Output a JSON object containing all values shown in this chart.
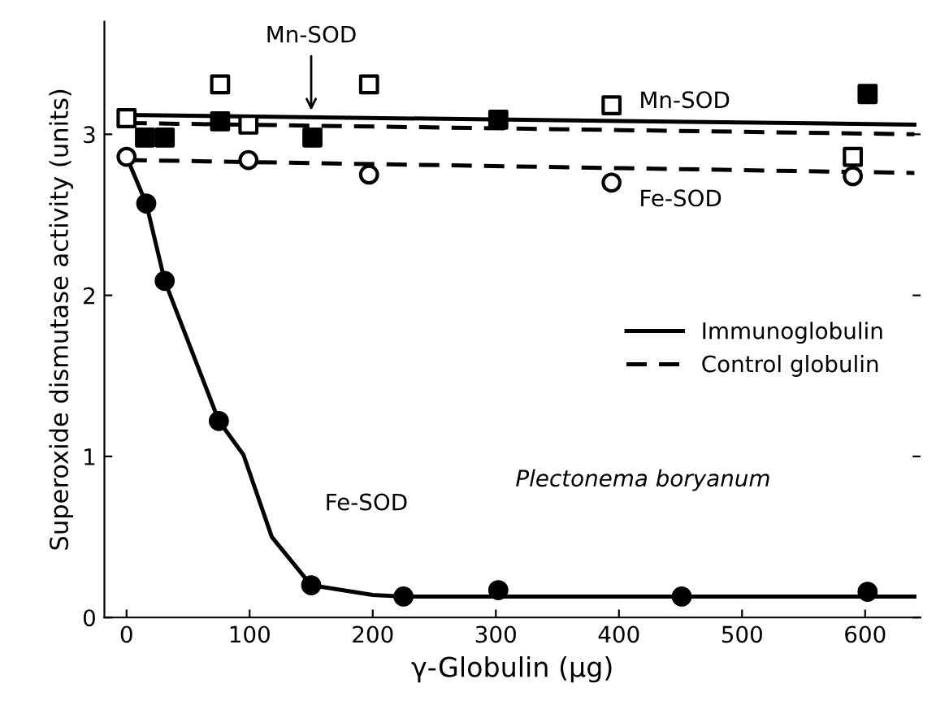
{
  "chart_data": {
    "type": "scatter",
    "xlabel": "γ-Globulin (μg)",
    "ylabel": "Superoxide dismutase activity (units)",
    "xlim": [
      -18,
      645
    ],
    "ylim": [
      0,
      3.7
    ],
    "xticks": [
      0,
      100,
      200,
      300,
      400,
      500,
      600
    ],
    "yticks": [
      0,
      1,
      2,
      3
    ],
    "grid": false,
    "legend": "right",
    "series": [
      {
        "type": "line",
        "name": "Immunoglobulin",
        "color": "#000000",
        "line_style": "solid",
        "marker": "none",
        "x": [
          0,
          640
        ],
        "values": [
          3.12,
          3.06
        ]
      },
      {
        "type": "line",
        "name": "Control globulin",
        "color": "#000000",
        "line_style": "dashed",
        "marker": "none",
        "x": [
          0,
          640
        ],
        "values": [
          3.07,
          3.0
        ]
      },
      {
        "type": "line",
        "color": "#000000",
        "line_style": "dashed",
        "marker": "none",
        "x": [
          0,
          640
        ],
        "values": [
          2.84,
          2.76
        ]
      },
      {
        "type": "line",
        "color": "#000000",
        "line_style": "solid",
        "marker": "none",
        "x": [
          0,
          16,
          31,
          75,
          95,
          118,
          150,
          200,
          225,
          640
        ],
        "values": [
          2.86,
          2.57,
          2.09,
          1.22,
          1.01,
          0.5,
          0.2,
          0.14,
          0.13,
          0.13
        ]
      },
      {
        "color": "#000000",
        "marker": "square",
        "x": [
          15,
          31,
          76,
          151,
          302,
          602
        ],
        "values": [
          2.98,
          2.98,
          3.08,
          2.98,
          3.09,
          3.25
        ]
      },
      {
        "color": "#ffffff",
        "marker": "square",
        "x": [
          0,
          76,
          99,
          197,
          394,
          590
        ],
        "values": [
          3.1,
          3.31,
          3.06,
          3.31,
          3.18,
          2.86
        ]
      },
      {
        "color": "#ffffff",
        "marker": "circle",
        "x": [
          0,
          99,
          197,
          394,
          590
        ],
        "values": [
          2.86,
          2.84,
          2.75,
          2.7,
          2.74
        ]
      },
      {
        "color": "#000000",
        "marker": "circle",
        "x": [
          16,
          31,
          75,
          150,
          225,
          302,
          451,
          602
        ],
        "values": [
          2.57,
          2.09,
          1.22,
          0.2,
          0.13,
          0.17,
          0.13,
          0.16
        ]
      }
    ],
    "annotations": [
      {
        "text": "Mn-SOD",
        "x": 150,
        "y": 3.12
      },
      "Mn-SOD",
      "Fe-SOD",
      "Fe-SOD",
      "Plectonema boryanum"
    ]
  }
}
